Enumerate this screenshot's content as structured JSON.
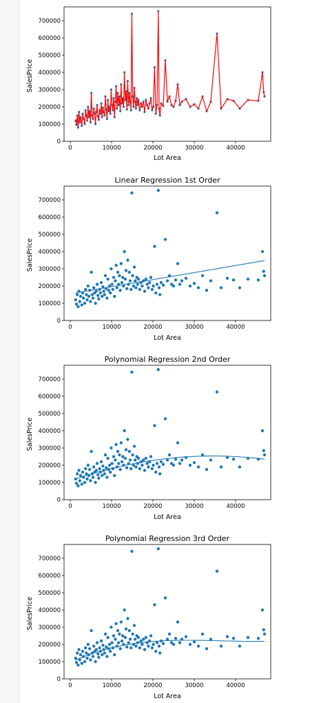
{
  "charts": [
    {
      "type": "line",
      "title": "",
      "xlabel": "Lot Area",
      "ylabel": "SalesPrice",
      "xlim": [
        -1500,
        48500
      ],
      "ylim": [
        0,
        780000
      ],
      "xticks": [
        "0",
        "10000",
        "20000",
        "30000",
        "40000"
      ],
      "yticks": [
        "0",
        "100000",
        "200000",
        "300000",
        "400000",
        "500000",
        "600000",
        "700000"
      ],
      "colors": {
        "points": "#1f77b4",
        "line": "#ff0000"
      }
    },
    {
      "type": "scatter",
      "title": "Linear Regression 1st Order",
      "xlabel": "Lot Area",
      "ylabel": "SalesPrice",
      "xlim": [
        -1500,
        48500
      ],
      "ylim": [
        0,
        780000
      ],
      "xticks": [
        "0",
        "10000",
        "20000",
        "30000",
        "40000"
      ],
      "yticks": [
        "0",
        "100000",
        "200000",
        "300000",
        "400000",
        "500000",
        "600000",
        "700000"
      ],
      "fit": {
        "order": 1,
        "x_range": [
          1300,
          47000
        ],
        "coefficients": [
          155000,
          4.1
        ]
      },
      "colors": {
        "points": "#1f77b4",
        "fit": "#1f77b4"
      }
    },
    {
      "type": "scatter",
      "title": "Polynomial Regression 2nd Order",
      "xlabel": "Lot Area",
      "ylabel": "SalesPrice",
      "xlim": [
        -1500,
        48500
      ],
      "ylim": [
        0,
        780000
      ],
      "xticks": [
        "0",
        "10000",
        "20000",
        "30000",
        "40000"
      ],
      "yticks": [
        "0",
        "100000",
        "200000",
        "300000",
        "400000",
        "500000",
        "600000",
        "700000"
      ],
      "fit": {
        "order": 2,
        "x_range": [
          1300,
          47000
        ],
        "coefficients": [
          110000,
          8.3,
          -0.00012
        ]
      },
      "colors": {
        "points": "#1f77b4",
        "fit": "#1f77b4"
      }
    },
    {
      "type": "scatter",
      "title": "Polynomial Regression 3rd Order",
      "xlabel": "Lot Area",
      "ylabel": "SalesPrice",
      "xlim": [
        -1500,
        48500
      ],
      "ylim": [
        0,
        780000
      ],
      "xticks": [
        "0",
        "10000",
        "20000",
        "30000",
        "40000"
      ],
      "yticks": [
        "0",
        "100000",
        "200000",
        "300000",
        "400000",
        "500000",
        "600000",
        "700000"
      ],
      "fit": {
        "order": 3,
        "x_range": [
          1300,
          47000
        ],
        "coefficients": [
          95000,
          11.5,
          -0.00033,
          3e-09
        ]
      },
      "colors": {
        "points": "#1f77b4",
        "fit": "#1f77b4"
      }
    }
  ],
  "chart_data": {
    "type": "scatter",
    "xlabel": "Lot Area",
    "ylabel": "SalesPrice",
    "xlim": [
      -1500,
      48500
    ],
    "ylim": [
      0,
      780000
    ],
    "note": "",
    "x": [
      1300,
      1500,
      1700,
      1900,
      2100,
      2300,
      2500,
      2800,
      3000,
      3200,
      3500,
      3700,
      3900,
      4100,
      4300,
      4500,
      4700,
      4900,
      5100,
      5300,
      5500,
      5700,
      5900,
      6100,
      6300,
      6500,
      6700,
      6900,
      7100,
      7300,
      7500,
      7700,
      7900,
      8100,
      8300,
      8500,
      8700,
      8900,
      9100,
      9300,
      9500,
      9700,
      9900,
      10100,
      10300,
      10500,
      10700,
      10900,
      11100,
      11300,
      11500,
      11700,
      11900,
      12100,
      12300,
      12500,
      12700,
      12900,
      13100,
      13300,
      13500,
      13700,
      13900,
      14100,
      14300,
      14500,
      14700,
      14900,
      15100,
      15300,
      15500,
      15700,
      15900,
      16100,
      16300,
      16500,
      16800,
      17100,
      17400,
      17700,
      18000,
      18300,
      18600,
      18900,
      19200,
      19500,
      19800,
      20100,
      20400,
      20700,
      21000,
      21300,
      21500,
      21700,
      22000,
      22500,
      23000,
      23500,
      24000,
      24500,
      25000,
      25500,
      26000,
      26500,
      27000,
      28000,
      29000,
      30000,
      31000,
      32000,
      33000,
      34000,
      35500,
      36500,
      38000,
      39500,
      41000,
      43000,
      45500,
      46500,
      46800,
      47000
    ],
    "y": [
      120000,
      95000,
      150000,
      80000,
      170000,
      110000,
      140000,
      90000,
      160000,
      130000,
      100000,
      180000,
      150000,
      120000,
      200000,
      140000,
      175000,
      110000,
      280000,
      150000,
      130000,
      190000,
      160000,
      100000,
      170000,
      210000,
      145000,
      125000,
      180000,
      160000,
      220000,
      140000,
      195000,
      170000,
      150000,
      260000,
      185000,
      130000,
      240000,
      175000,
      200000,
      160000,
      300000,
      210000,
      180000,
      250000,
      140000,
      230000,
      320000,
      190000,
      280000,
      210000,
      260000,
      175000,
      330000,
      220000,
      250000,
      200000,
      400000,
      240000,
      290000,
      185000,
      350000,
      210000,
      280000,
      230000,
      180000,
      740000,
      260000,
      200000,
      310000,
      230000,
      190000,
      250000,
      210000,
      240000,
      180000,
      220000,
      200000,
      230000,
      170000,
      240000,
      210000,
      190000,
      220000,
      250000,
      180000,
      200000,
      430000,
      160000,
      210000,
      755000,
      190000,
      150000,
      220000,
      205000,
      470000,
      230000,
      260000,
      210000,
      200000,
      235000,
      330000,
      210000,
      230000,
      245000,
      200000,
      215000,
      190000,
      260000,
      175000,
      230000,
      625000,
      190000,
      245000,
      235000,
      190000,
      240000,
      235000,
      400000,
      285000,
      260000
    ]
  }
}
